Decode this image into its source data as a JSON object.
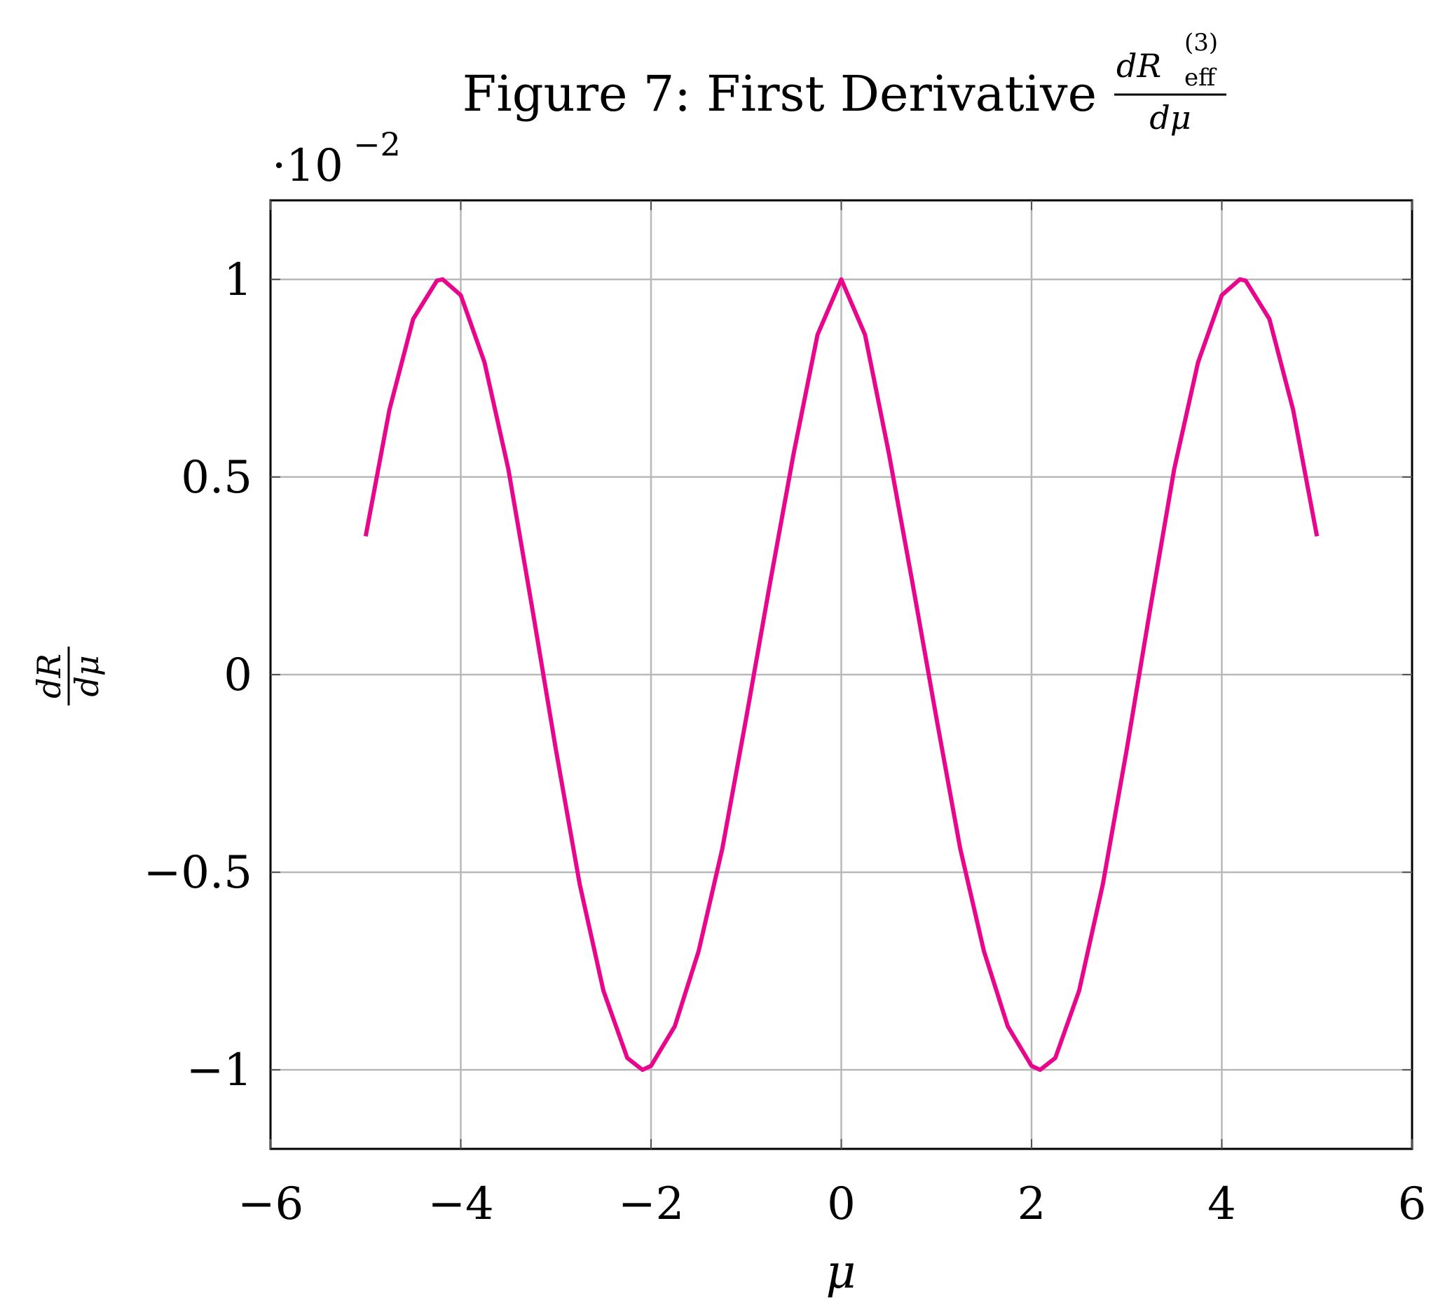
{
  "title": {
    "text": "Figure 7: First Derivative",
    "frac_num_main": "dR",
    "frac_num_sup": "(3)",
    "frac_num_sub": "eff",
    "frac_den": "dμ"
  },
  "ylabel": {
    "num": "dR",
    "den": "dμ"
  },
  "xlabel": "μ",
  "scale_multiplier": {
    "prefix": "·10",
    "exponent": "−2"
  },
  "colors": {
    "series": "#e8078c",
    "grid": "#b8b8b8",
    "frame": "#000000"
  },
  "chart_data": {
    "type": "line",
    "title": "Figure 7: First Derivative dR_eff^(3)/dμ",
    "xlabel": "μ",
    "ylabel": "dR/dμ",
    "y_multiplier": "10^-2",
    "xlim": [
      -6,
      6
    ],
    "ylim": [
      -1.2,
      1.2
    ],
    "grid": true,
    "x_ticks": [
      -6,
      -4,
      -2,
      0,
      2,
      4,
      6
    ],
    "x_tick_labels": [
      "−6",
      "−4",
      "−2",
      "0",
      "2",
      "4",
      "6"
    ],
    "y_ticks": [
      -1,
      -0.5,
      0,
      0.5,
      1
    ],
    "y_tick_labels": [
      "−1",
      "−0.5",
      "0",
      "0.5",
      "1"
    ],
    "series": [
      {
        "x": [
          -5,
          -4.75,
          -4.5,
          -4.25,
          -4.19,
          -4,
          -3.75,
          -3.5,
          -3.25,
          -3,
          -2.75,
          -2.5,
          -2.25,
          -2.09,
          -2,
          -1.75,
          -1.5,
          -1.25,
          -1,
          -0.75,
          -0.5,
          -0.25,
          0,
          0.25,
          0.5,
          0.75,
          1,
          1.25,
          1.5,
          1.75,
          2,
          2.09,
          2.25,
          2.5,
          2.75,
          3,
          3.25,
          3.5,
          3.75,
          4,
          4.19,
          4.25,
          4.5,
          4.75,
          5
        ],
        "y": [
          0.35,
          0.67,
          0.9,
          0.997,
          1.0,
          0.96,
          0.79,
          0.52,
          0.17,
          -0.19,
          -0.53,
          -0.8,
          -0.97,
          -1.0,
          -0.99,
          -0.89,
          -0.7,
          -0.44,
          -0.11,
          0.23,
          0.56,
          0.86,
          1.0,
          0.86,
          0.56,
          0.23,
          -0.11,
          -0.44,
          -0.7,
          -0.89,
          -0.99,
          -1.0,
          -0.97,
          -0.8,
          -0.53,
          -0.19,
          0.17,
          0.52,
          0.79,
          0.96,
          1.0,
          0.997,
          0.9,
          0.67,
          0.35
        ]
      }
    ]
  }
}
